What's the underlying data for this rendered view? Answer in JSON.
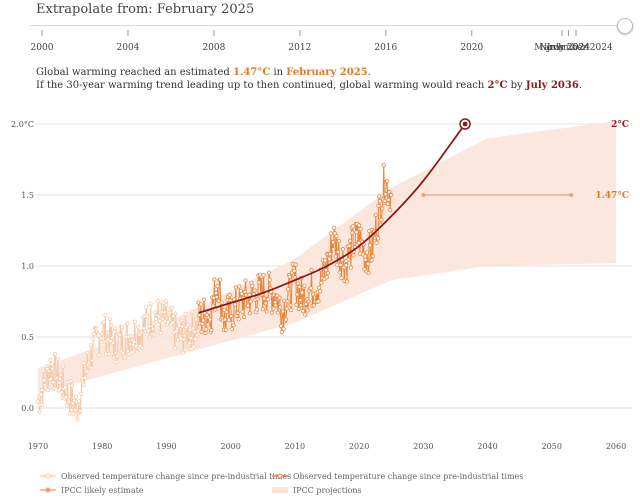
{
  "slider": {
    "label": "Extrapolate from: February 2025"
  },
  "timeline": {
    "ticks": [
      {
        "label": "2000",
        "year": 2000
      },
      {
        "label": "2004",
        "year": 2004
      },
      {
        "label": "2008",
        "year": 2008
      },
      {
        "label": "2012",
        "year": 2012
      },
      {
        "label": "2016",
        "year": 2016
      },
      {
        "label": "2020",
        "year": 2020
      },
      {
        "label": "March 2024",
        "year": 2024.2
      },
      {
        "label": "July 2024",
        "year": 2024.5
      },
      {
        "label": "November 2024",
        "year": 2024.85
      }
    ]
  },
  "summary": {
    "line1_a": "Global warming reached an estimated ",
    "line1_value": "1.47°C",
    "line1_b": " in ",
    "line1_date": "February 2025",
    "line1_c": ".",
    "line2_a": "If the 30-year warming trend leading up to then continued, global warming would reach ",
    "line2_value": "2°C",
    "line2_b": " by ",
    "line2_date": "July 2036",
    "line2_c": "."
  },
  "colors": {
    "observed": "#e8853a",
    "observed_faded": "#f4c9a8",
    "trend": "#8b1a1a",
    "projection_band": "#fbe3d8",
    "ipcc_line": "#e8a27a"
  },
  "chart_data": {
    "type": "line",
    "xlim": [
      1970,
      2060
    ],
    "ylim": [
      -0.1,
      2.05
    ],
    "x_ticks": [
      1970,
      1980,
      1990,
      2000,
      2010,
      2020,
      2030,
      2040,
      2050,
      2060
    ],
    "y_ticks": [
      {
        "value": 0.0,
        "label": "0.0"
      },
      {
        "value": 0.5,
        "label": "0.5"
      },
      {
        "value": 1.0,
        "label": "1.0"
      },
      {
        "value": 1.5,
        "label": "1.5"
      },
      {
        "value": 2.0,
        "label": "2.0°C"
      }
    ],
    "grid": true,
    "observed_faded_anchors": [
      [
        1970,
        0.05
      ],
      [
        1972,
        0.3
      ],
      [
        1974,
        0.15
      ],
      [
        1976,
        0.0
      ],
      [
        1978,
        0.35
      ],
      [
        1980,
        0.55
      ],
      [
        1982,
        0.45
      ],
      [
        1984,
        0.5
      ],
      [
        1986,
        0.55
      ],
      [
        1988,
        0.65
      ],
      [
        1990,
        0.62
      ],
      [
        1992,
        0.5
      ],
      [
        1994,
        0.55
      ],
      [
        1995,
        0.6
      ]
    ],
    "observed_anchors": [
      [
        1995,
        0.62
      ],
      [
        1997,
        0.68
      ],
      [
        1998,
        0.9
      ],
      [
        1999,
        0.62
      ],
      [
        2001,
        0.72
      ],
      [
        2003,
        0.78
      ],
      [
        2005,
        0.82
      ],
      [
        2007,
        0.8
      ],
      [
        2008,
        0.68
      ],
      [
        2010,
        0.9
      ],
      [
        2011,
        0.78
      ],
      [
        2012,
        0.82
      ],
      [
        2014,
        0.88
      ],
      [
        2015,
        1.0
      ],
      [
        2016,
        1.2
      ],
      [
        2017,
        1.08
      ],
      [
        2018,
        1.02
      ],
      [
        2019,
        1.15
      ],
      [
        2020,
        1.2
      ],
      [
        2021,
        1.08
      ],
      [
        2022,
        1.12
      ],
      [
        2023,
        1.35
      ],
      [
        2024,
        1.6
      ],
      [
        2025,
        1.5
      ]
    ],
    "trend": {
      "points": [
        [
          1995,
          0.67
        ],
        [
          2000,
          0.74
        ],
        [
          2005,
          0.81
        ],
        [
          2010,
          0.9
        ],
        [
          2015,
          1.0
        ],
        [
          2020,
          1.14
        ],
        [
          2025,
          1.35
        ],
        [
          2030,
          1.6
        ],
        [
          2036.5,
          2.0
        ]
      ],
      "end_point": [
        2036.5,
        2.0
      ]
    },
    "ipcc_estimate": {
      "x_start": 2030,
      "x_end": 2053,
      "value": 1.5,
      "label": "1.47°C"
    },
    "projection_band": {
      "upper": [
        [
          1970,
          0.28
        ],
        [
          1990,
          0.6
        ],
        [
          2010,
          1.05
        ],
        [
          2025,
          1.55
        ],
        [
          2040,
          1.9
        ],
        [
          2060,
          2.02
        ]
      ],
      "lower": [
        [
          1970,
          0.1
        ],
        [
          1990,
          0.35
        ],
        [
          2010,
          0.6
        ],
        [
          2025,
          0.9
        ],
        [
          2040,
          1.0
        ],
        [
          2060,
          1.02
        ]
      ]
    },
    "annotations": [
      {
        "label": "2°C",
        "value": 2.0,
        "color": "#8b1a1a"
      },
      {
        "label": "1.47°C",
        "value": 1.5,
        "color": "#e07a22"
      }
    ],
    "legend": [
      {
        "label": "Observed temperature change since pre-industrial times",
        "style": "faded"
      },
      {
        "label": "Observed temperature change since pre-industrial times",
        "style": "solid"
      },
      {
        "label": "IPCC likely estimate",
        "style": "ipcc"
      },
      {
        "label": "IPCC projections",
        "style": "band"
      }
    ],
    "legend_position": "bottom"
  }
}
